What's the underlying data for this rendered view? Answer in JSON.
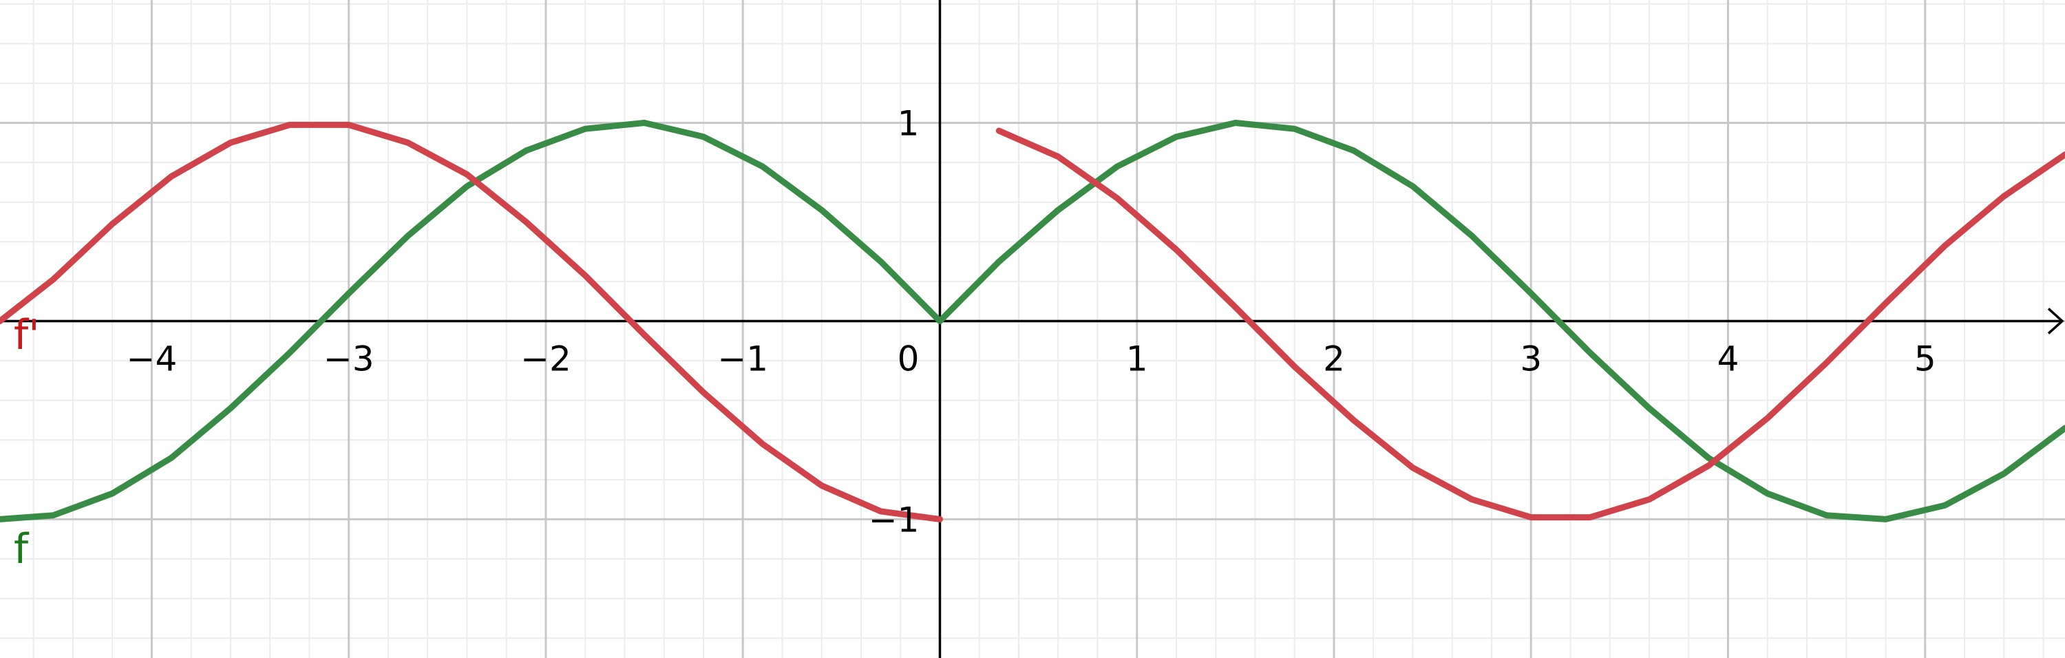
{
  "chart_data": {
    "type": "line",
    "xlim": [
      -4.77,
      5.71
    ],
    "ylim": [
      -1.7,
      1.62
    ],
    "grid": {
      "major_step": 1,
      "minor_step": 0.2
    },
    "x_ticks": [
      "−4",
      "−3",
      "−2",
      "−1",
      "1",
      "2",
      "3",
      "4",
      "5"
    ],
    "x_tick_values": [
      -4,
      -3,
      -2,
      -1,
      1,
      2,
      3,
      4,
      5
    ],
    "origin_label": "0",
    "y_ticks": [
      "1",
      "−1"
    ],
    "y_tick_values": [
      1,
      -1
    ],
    "series": [
      {
        "name": "f",
        "color": "#388c46",
        "label_color": "#1a7a1a",
        "x": [
          -4.77,
          -4.5,
          -4.2,
          -3.9,
          -3.6,
          -3.3,
          -3.0,
          -2.7,
          -2.4,
          -2.1,
          -1.8,
          -1.5,
          -1.2,
          -0.9,
          -0.6,
          -0.3,
          0,
          0.3,
          0.6,
          0.9,
          1.2,
          1.5,
          1.8,
          2.1,
          2.4,
          2.7,
          3.0,
          3.3,
          3.6,
          3.9,
          4.2,
          4.5,
          4.8,
          5.1,
          5.4,
          5.71
        ],
        "y": [
          -1.0,
          -0.98,
          -0.87,
          -0.69,
          -0.44,
          -0.16,
          0.14,
          0.43,
          0.68,
          0.86,
          0.97,
          1.0,
          0.93,
          0.78,
          0.56,
          0.3,
          0,
          0.3,
          0.56,
          0.78,
          0.93,
          1.0,
          0.97,
          0.86,
          0.68,
          0.43,
          0.14,
          -0.16,
          -0.44,
          -0.69,
          -0.87,
          -0.98,
          -1.0,
          -0.93,
          -0.77,
          -0.54
        ]
      },
      {
        "name": "f'",
        "color": "#d0434a",
        "label_color": "#c41a1a",
        "x": [
          -4.77,
          -4.5,
          -4.2,
          -3.9,
          -3.6,
          -3.3,
          -3.0,
          -2.7,
          -2.4,
          -2.1,
          -1.8,
          -1.5,
          -1.2,
          -0.9,
          -0.6,
          -0.3,
          0,
          0.3,
          0.6,
          0.9,
          1.2,
          1.5,
          1.8,
          2.1,
          2.4,
          2.7,
          3.0,
          3.3,
          3.6,
          3.9,
          4.2,
          4.5,
          4.8,
          5.1,
          5.4,
          5.71
        ],
        "y": [
          0.0,
          0.21,
          0.49,
          0.73,
          0.9,
          0.99,
          0.99,
          0.9,
          0.74,
          0.5,
          0.23,
          -0.07,
          -0.36,
          -0.62,
          -0.83,
          -0.96,
          -1.0,
          0.96,
          0.83,
          0.62,
          0.36,
          0.07,
          -0.23,
          -0.5,
          -0.74,
          -0.9,
          -0.99,
          -0.99,
          -0.9,
          -0.73,
          -0.49,
          -0.21,
          0.09,
          0.38,
          0.63,
          0.84
        ]
      }
    ],
    "series_label_positions": {
      "f": [
        -4.7,
        -1.22
      ],
      "f'": [
        -4.7,
        -0.14
      ]
    }
  }
}
